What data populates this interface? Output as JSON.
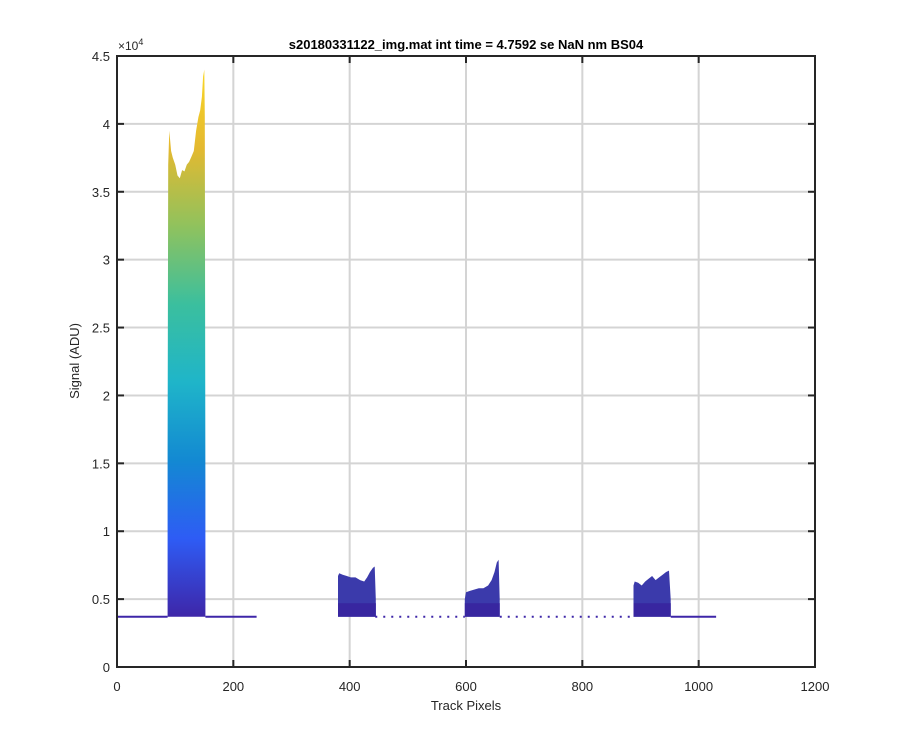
{
  "chart_data": {
    "type": "area",
    "title": "s20180331122_img.mat int time = 4.7592 se  NaN nm BS04",
    "xlabel": "Track Pixels",
    "ylabel": "Signal (ADU)",
    "y_exponent_label": "×10",
    "y_exponent_power": "4",
    "xlim": [
      0,
      1200
    ],
    "ylim": [
      0,
      4.5
    ],
    "y_scale_factor": 10000,
    "xticks": [
      0,
      200,
      400,
      600,
      800,
      1000,
      1200
    ],
    "yticks": [
      0,
      0.5,
      1,
      1.5,
      2,
      2.5,
      3,
      3.5,
      4,
      4.5
    ],
    "xtick_labels": [
      "0",
      "200",
      "400",
      "600",
      "800",
      "1000",
      "1200"
    ],
    "ytick_labels": [
      "0",
      "0.5",
      "1",
      "1.5",
      "2",
      "2.5",
      "3",
      "3.5",
      "4",
      "4.5"
    ],
    "grid": true,
    "colormap": [
      "#3e26a8",
      "#2e5cf5",
      "#1389d2",
      "#1fb5c9",
      "#3bbf9e",
      "#90c25d",
      "#e4b930",
      "#f9d625"
    ],
    "baseline": 0.37,
    "peaks": [
      {
        "x": [
          87,
          88,
          90,
          93,
          96,
          100,
          104,
          108,
          112,
          116,
          120,
          124,
          128,
          132,
          136,
          140,
          143,
          146,
          148,
          150,
          151,
          152
        ],
        "y": [
          1.6,
          3.7,
          3.95,
          3.8,
          3.75,
          3.7,
          3.62,
          3.6,
          3.66,
          3.65,
          3.7,
          3.72,
          3.76,
          3.8,
          3.95,
          4.05,
          4.1,
          4.2,
          4.35,
          4.4,
          4.05,
          1.35
        ]
      },
      {
        "x": [
          380,
          382,
          388,
          395,
          402,
          410,
          418,
          425,
          430,
          435,
          440,
          443,
          445
        ],
        "y": [
          0.67,
          0.69,
          0.68,
          0.67,
          0.66,
          0.66,
          0.64,
          0.63,
          0.66,
          0.7,
          0.73,
          0.74,
          0.5
        ]
      },
      {
        "x": [
          598,
          600,
          606,
          614,
          622,
          630,
          638,
          644,
          649,
          653,
          656,
          658
        ],
        "y": [
          0.5,
          0.55,
          0.56,
          0.57,
          0.58,
          0.58,
          0.6,
          0.64,
          0.7,
          0.77,
          0.79,
          0.5
        ]
      },
      {
        "x": [
          888,
          890,
          896,
          902,
          908,
          914,
          920,
          926,
          932,
          938,
          944,
          949,
          952
        ],
        "y": [
          0.6,
          0.63,
          0.62,
          0.6,
          0.63,
          0.65,
          0.67,
          0.64,
          0.66,
          0.68,
          0.7,
          0.71,
          0.5
        ]
      }
    ],
    "baseline_segments": [
      [
        0,
        87
      ],
      [
        152,
        240
      ],
      [
        444,
        598
      ],
      [
        658,
        888
      ],
      [
        952,
        1030
      ]
    ]
  }
}
